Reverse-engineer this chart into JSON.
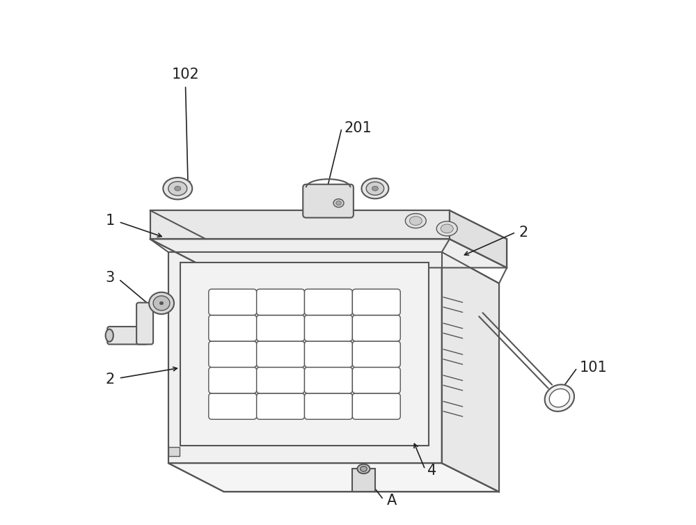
{
  "bg_color": "#ffffff",
  "line_color": "#555555",
  "line_width": 1.5,
  "annotation_color": "#222222",
  "fontsize": 14
}
